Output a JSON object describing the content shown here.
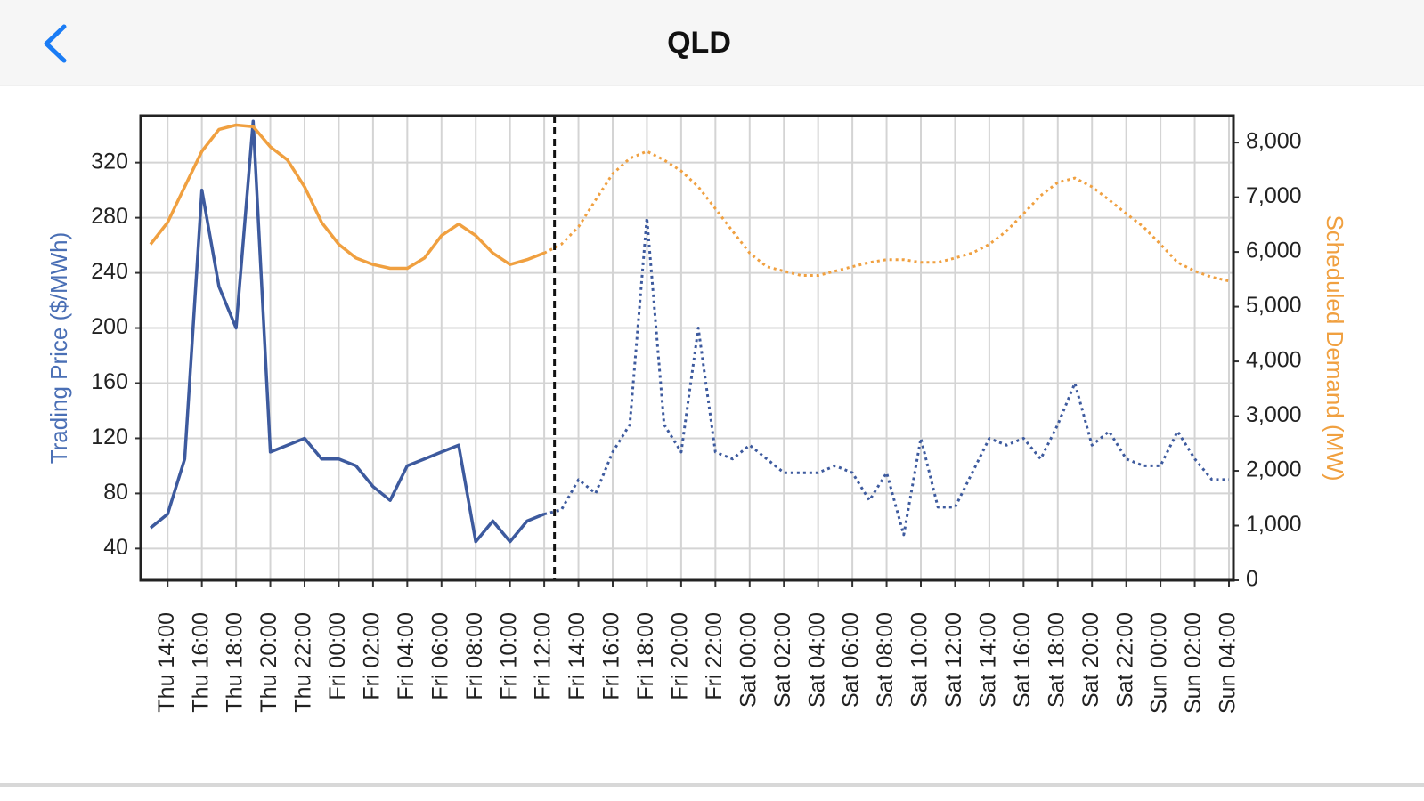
{
  "header": {
    "title": "QLD"
  },
  "chart_data": {
    "type": "line",
    "y_label": "Trading Price ($/MWh)",
    "y2_label": "Scheduled Demand (MW)",
    "categories": [
      null,
      "Thu 14:00",
      null,
      "Thu 16:00",
      null,
      "Thu 18:00",
      null,
      "Thu 20:00",
      null,
      "Thu 22:00",
      null,
      "Fri 00:00",
      null,
      "Fri 02:00",
      null,
      "Fri 04:00",
      null,
      "Fri 06:00",
      null,
      "Fri 08:00",
      null,
      "Fri 10:00",
      null,
      "Fri 12:00",
      null,
      "Fri 14:00",
      null,
      "Fri 16:00",
      null,
      "Fri 18:00",
      null,
      "Fri 20:00",
      null,
      "Fri 22:00",
      null,
      "Sat 00:00",
      null,
      "Sat 02:00",
      null,
      "Sat 04:00",
      null,
      "Sat 06:00",
      null,
      "Sat 08:00",
      null,
      "Sat 10:00",
      null,
      "Sat 12:00",
      null,
      "Sat 14:00",
      null,
      "Sat 16:00",
      null,
      "Sat 18:00",
      null,
      "Sat 20:00",
      null,
      "Sat 22:00",
      null,
      "Sun 00:00",
      null,
      "Sun 02:00",
      null,
      "Sun 04:00"
    ],
    "ylim": [
      17,
      354
    ],
    "yticks": [
      40,
      80,
      120,
      160,
      200,
      240,
      280,
      320
    ],
    "y2lim": [
      0,
      8490
    ],
    "y2ticks": [
      0,
      {
        "value": 1000,
        "label": "1,000"
      },
      {
        "value": 2000,
        "label": "2,000"
      },
      {
        "value": 3000,
        "label": "3,000"
      },
      {
        "value": 4000,
        "label": "4,000"
      },
      {
        "value": 5000,
        "label": "5,000"
      },
      {
        "value": 6000,
        "label": "6,000"
      },
      {
        "value": 7000,
        "label": "7,000"
      },
      {
        "value": 8000,
        "label": "8,000"
      }
    ],
    "grid": true,
    "y_color": "#4a6fb5",
    "y2_color": "#f0a040",
    "series": [
      {
        "color": "#3d5a9e",
        "style": "solid",
        "values": [
          55,
          65,
          105,
          300,
          230,
          200,
          350,
          110,
          115,
          120,
          105,
          105,
          100,
          85,
          75,
          100,
          105,
          110,
          115,
          45,
          60,
          45,
          60,
          65,
          null,
          null,
          null,
          null,
          null,
          null,
          null,
          null,
          null,
          null,
          null,
          null,
          null,
          null,
          null,
          null,
          null,
          null,
          null,
          null,
          null,
          null,
          null,
          null,
          null,
          null,
          null,
          null,
          null,
          null,
          null,
          null,
          null,
          null,
          null,
          null,
          null,
          null,
          null,
          null
        ]
      },
      {
        "color": "#3d5a9e",
        "style": "dotted",
        "values": [
          null,
          null,
          null,
          null,
          null,
          null,
          null,
          null,
          null,
          null,
          null,
          null,
          null,
          null,
          null,
          null,
          null,
          null,
          null,
          null,
          null,
          null,
          null,
          65,
          68,
          90,
          80,
          110,
          130,
          280,
          130,
          110,
          200,
          110,
          105,
          115,
          105,
          95,
          95,
          95,
          100,
          95,
          75,
          95,
          50,
          120,
          70,
          70,
          95,
          120,
          115,
          120,
          105,
          130,
          160,
          115,
          125,
          105,
          100,
          100,
          125,
          105,
          90,
          90
        ]
      },
      {
        "color": "#f0a040",
        "style": "solid",
        "axis": "y2",
        "values": [
          6140,
          6540,
          7190,
          7840,
          8240,
          8320,
          8290,
          7920,
          7680,
          7190,
          6540,
          6140,
          5890,
          5770,
          5700,
          5700,
          5890,
          6300,
          6510,
          6300,
          5980,
          5770,
          5860,
          5980,
          null,
          null,
          null,
          null,
          null,
          null,
          null,
          null,
          null,
          null,
          null,
          null,
          null,
          null,
          null,
          null,
          null,
          null,
          null,
          null,
          null,
          null,
          null,
          null,
          null,
          null,
          null,
          null,
          null,
          null,
          null,
          null,
          null,
          null,
          null,
          null,
          null,
          null,
          null,
          null
        ]
      },
      {
        "color": "#f0a040",
        "style": "dotted",
        "axis": "y2",
        "values": [
          null,
          null,
          null,
          null,
          null,
          null,
          null,
          null,
          null,
          null,
          null,
          null,
          null,
          null,
          null,
          null,
          null,
          null,
          null,
          null,
          null,
          null,
          null,
          5980,
          6140,
          6460,
          6950,
          7430,
          7710,
          7840,
          7680,
          7480,
          7190,
          6790,
          6380,
          5980,
          5730,
          5650,
          5570,
          5570,
          5650,
          5730,
          5810,
          5860,
          5860,
          5810,
          5810,
          5890,
          5980,
          6140,
          6380,
          6700,
          7030,
          7270,
          7350,
          7190,
          6950,
          6700,
          6460,
          6140,
          5810,
          5650,
          5540,
          5470
        ]
      }
    ]
  }
}
